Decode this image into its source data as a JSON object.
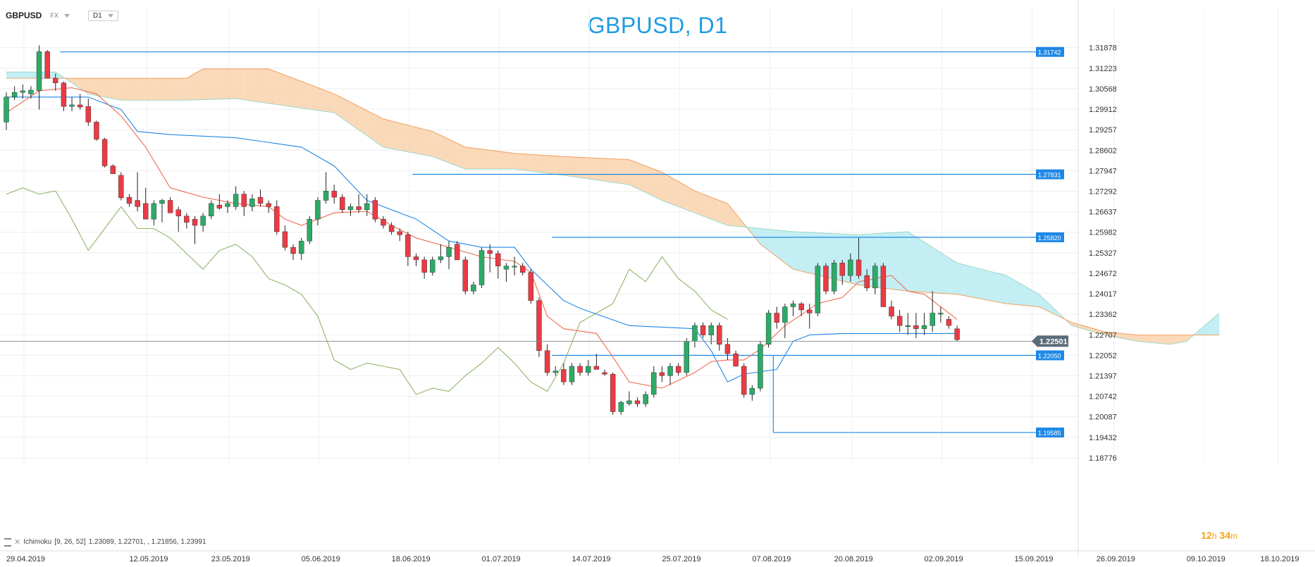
{
  "header": {
    "symbol": "GBPUSD",
    "market": "FX",
    "timeframe": "D1",
    "title": "GBPUSD, D1"
  },
  "indicator": {
    "name": "Ichimoku",
    "params": "[9, 26, 52]",
    "values": "1.23089,  1.22701,  , 1.21856,  1.23991"
  },
  "countdown": {
    "hours": "12",
    "h": "h",
    "minutes": "34",
    "m": "m"
  },
  "colors": {
    "up": "#2eaa68",
    "down": "#ea3b45",
    "tenkan": "#ef6b50",
    "kijun": "#1e88e5",
    "chikou": "#8fb56a",
    "kumo_bull": "#b9ecf2",
    "kumo_bear": "#f9d2ad",
    "level": "#1e88e5",
    "price_label": "#5a6b78"
  },
  "chart_data": {
    "type": "candlestick",
    "title": "GBPUSD, D1",
    "ylim": [
      1.18776,
      1.325
    ],
    "y_ticks": [
      "1.31878",
      "1.31223",
      "1.30568",
      "1.29912",
      "1.29257",
      "1.28602",
      "1.27947",
      "1.27292",
      "1.26637",
      "1.25982",
      "1.25327",
      "1.24672",
      "1.24017",
      "1.23362",
      "1.22707",
      "1.22052",
      "1.21397",
      "1.20742",
      "1.20087",
      "1.19432",
      "1.18776"
    ],
    "x_ticks": [
      "29.04.2019",
      "12.05.2019",
      "23.05.2019",
      "05.06.2019",
      "18.06.2019",
      "01.07.2019",
      "14.07.2019",
      "25.07.2019",
      "07.08.2019",
      "20.08.2019",
      "02.09.2019",
      "15.09.2019",
      "26.09.2019",
      "09.10.2019",
      "18.10.2019"
    ],
    "levels": [
      {
        "value": 1.31742,
        "label": "1.31742"
      },
      {
        "value": 1.27831,
        "label": "1.27831"
      },
      {
        "value": 1.2582,
        "label": "1.25820"
      },
      {
        "value": 1.2205,
        "label": "1.22050"
      },
      {
        "value": 1.19585,
        "label": "1.19585"
      }
    ],
    "current_price": {
      "value": 1.22501,
      "label": "1.22501"
    },
    "candles": [
      [
        1.295,
        1.3045,
        1.2925,
        1.303
      ],
      [
        1.303,
        1.3065,
        1.302,
        1.3045
      ],
      [
        1.3045,
        1.307,
        1.3025,
        1.305
      ],
      [
        1.304,
        1.3065,
        1.3025,
        1.3052
      ],
      [
        1.305,
        1.3195,
        1.299,
        1.3175
      ],
      [
        1.3175,
        1.318,
        1.31,
        1.309
      ],
      [
        1.309,
        1.3105,
        1.305,
        1.3075
      ],
      [
        1.3075,
        1.308,
        1.2985,
        1.3
      ],
      [
        1.3,
        1.303,
        1.2985,
        1.3005
      ],
      [
        1.3005,
        1.304,
        1.299,
        1.2998
      ],
      [
        1.3,
        1.3025,
        1.2938,
        1.295
      ],
      [
        1.295,
        1.2955,
        1.289,
        1.2895
      ],
      [
        1.2895,
        1.29,
        1.2805,
        1.281
      ],
      [
        1.281,
        1.2815,
        1.279,
        1.2785
      ],
      [
        1.278,
        1.279,
        1.27,
        1.2708
      ],
      [
        1.271,
        1.272,
        1.268,
        1.269
      ],
      [
        1.27,
        1.279,
        1.2665,
        1.268
      ],
      [
        1.269,
        1.274,
        1.264,
        1.264
      ],
      [
        1.264,
        1.27,
        1.262,
        1.269
      ],
      [
        1.269,
        1.2705,
        1.263,
        1.27
      ],
      [
        1.27,
        1.271,
        1.266,
        1.266
      ],
      [
        1.267,
        1.268,
        1.26,
        1.265
      ],
      [
        1.265,
        1.266,
        1.261,
        1.263
      ],
      [
        1.264,
        1.265,
        1.256,
        1.262
      ],
      [
        1.262,
        1.266,
        1.26,
        1.265
      ],
      [
        1.265,
        1.27,
        1.264,
        1.269
      ],
      [
        1.2685,
        1.272,
        1.267,
        1.2675
      ],
      [
        1.268,
        1.27,
        1.266,
        1.269
      ],
      [
        1.268,
        1.2745,
        1.267,
        1.272
      ],
      [
        1.272,
        1.273,
        1.265,
        1.268
      ],
      [
        1.268,
        1.272,
        1.2665,
        1.2705
      ],
      [
        1.271,
        1.2735,
        1.268,
        1.269
      ],
      [
        1.269,
        1.27,
        1.266,
        1.268
      ],
      [
        1.268,
        1.27,
        1.259,
        1.26
      ],
      [
        1.26,
        1.262,
        1.254,
        1.255
      ],
      [
        1.255,
        1.256,
        1.251,
        1.253
      ],
      [
        1.253,
        1.258,
        1.251,
        1.257
      ],
      [
        1.257,
        1.265,
        1.256,
        1.264
      ],
      [
        1.264,
        1.271,
        1.262,
        1.27
      ],
      [
        1.27,
        1.279,
        1.269,
        1.273
      ],
      [
        1.273,
        1.275,
        1.269,
        1.271
      ],
      [
        1.271,
        1.272,
        1.266,
        1.267
      ],
      [
        1.267,
        1.269,
        1.265,
        1.268
      ],
      [
        1.268,
        1.272,
        1.266,
        1.267
      ],
      [
        1.267,
        1.272,
        1.265,
        1.269
      ],
      [
        1.27,
        1.271,
        1.263,
        1.264
      ],
      [
        1.264,
        1.265,
        1.261,
        1.262
      ],
      [
        1.262,
        1.263,
        1.259,
        1.26
      ],
      [
        1.26,
        1.261,
        1.257,
        1.259
      ],
      [
        1.259,
        1.26,
        1.249,
        1.252
      ],
      [
        1.252,
        1.253,
        1.249,
        1.251
      ],
      [
        1.251,
        1.252,
        1.245,
        1.247
      ],
      [
        1.247,
        1.252,
        1.246,
        1.251
      ],
      [
        1.251,
        1.256,
        1.25,
        1.252
      ],
      [
        1.252,
        1.257,
        1.248,
        1.255
      ],
      [
        1.256,
        1.257,
        1.251,
        1.251
      ],
      [
        1.251,
        1.252,
        1.24,
        1.241
      ],
      [
        1.241,
        1.244,
        1.24,
        1.243
      ],
      [
        1.243,
        1.255,
        1.242,
        1.254
      ],
      [
        1.254,
        1.256,
        1.247,
        1.253
      ],
      [
        1.253,
        1.254,
        1.245,
        1.249
      ],
      [
        1.248,
        1.25,
        1.244,
        1.249
      ],
      [
        1.249,
        1.252,
        1.246,
        1.249
      ],
      [
        1.249,
        1.25,
        1.246,
        1.247
      ],
      [
        1.247,
        1.248,
        1.237,
        1.238
      ],
      [
        1.238,
        1.239,
        1.22,
        1.222
      ],
      [
        1.222,
        1.224,
        1.214,
        1.215
      ],
      [
        1.215,
        1.217,
        1.214,
        1.2155
      ],
      [
        1.216,
        1.218,
        1.211,
        1.212
      ],
      [
        1.212,
        1.218,
        1.211,
        1.217
      ],
      [
        1.217,
        1.218,
        1.214,
        1.215
      ],
      [
        1.215,
        1.219,
        1.214,
        1.217
      ],
      [
        1.217,
        1.221,
        1.216,
        1.216
      ],
      [
        1.215,
        1.216,
        1.214,
        1.2145
      ],
      [
        1.2145,
        1.215,
        1.2015,
        1.2025
      ],
      [
        1.2025,
        1.206,
        1.2015,
        1.2055
      ],
      [
        1.205,
        1.209,
        1.2045,
        1.206
      ],
      [
        1.206,
        1.207,
        1.204,
        1.205
      ],
      [
        1.205,
        1.209,
        1.204,
        1.208
      ],
      [
        1.208,
        1.217,
        1.207,
        1.215
      ],
      [
        1.215,
        1.217,
        1.212,
        1.214
      ],
      [
        1.214,
        1.218,
        1.211,
        1.217
      ],
      [
        1.217,
        1.218,
        1.214,
        1.215
      ],
      [
        1.215,
        1.226,
        1.214,
        1.225
      ],
      [
        1.225,
        1.231,
        1.223,
        1.23
      ],
      [
        1.23,
        1.231,
        1.226,
        1.227
      ],
      [
        1.227,
        1.231,
        1.224,
        1.23
      ],
      [
        1.23,
        1.231,
        1.222,
        1.224
      ],
      [
        1.224,
        1.226,
        1.219,
        1.221
      ],
      [
        1.221,
        1.222,
        1.217,
        1.217
      ],
      [
        1.217,
        1.218,
        1.207,
        1.208
      ],
      [
        1.208,
        1.211,
        1.206,
        1.21
      ],
      [
        1.21,
        1.225,
        1.209,
        1.224
      ],
      [
        1.224,
        1.235,
        1.223,
        1.234
      ],
      [
        1.234,
        1.236,
        1.229,
        1.231
      ],
      [
        1.231,
        1.237,
        1.226,
        1.236
      ],
      [
        1.236,
        1.238,
        1.233,
        1.237
      ],
      [
        1.237,
        1.2375,
        1.233,
        1.235
      ],
      [
        1.235,
        1.237,
        1.229,
        1.234
      ],
      [
        1.234,
        1.25,
        1.233,
        1.249
      ],
      [
        1.249,
        1.25,
        1.24,
        1.241
      ],
      [
        1.241,
        1.251,
        1.24,
        1.25
      ],
      [
        1.25,
        1.251,
        1.243,
        1.246
      ],
      [
        1.246,
        1.253,
        1.244,
        1.251
      ],
      [
        1.251,
        1.258,
        1.245,
        1.246
      ],
      [
        1.246,
        1.248,
        1.241,
        1.242
      ],
      [
        1.242,
        1.25,
        1.24,
        1.249
      ],
      [
        1.249,
        1.25,
        1.236,
        1.236
      ],
      [
        1.236,
        1.238,
        1.232,
        1.233
      ],
      [
        1.233,
        1.235,
        1.228,
        1.23
      ],
      [
        1.23,
        1.234,
        1.227,
        1.23
      ],
      [
        1.23,
        1.234,
        1.226,
        1.229
      ],
      [
        1.229,
        1.234,
        1.227,
        1.23
      ],
      [
        1.23,
        1.241,
        1.228,
        1.234
      ],
      [
        1.234,
        1.236,
        1.231,
        1.234
      ],
      [
        1.232,
        1.233,
        1.229,
        1.23
      ],
      [
        1.229,
        1.23,
        1.225,
        1.2255
      ]
    ],
    "tenkan": [
      [
        0,
        1.298
      ],
      [
        4,
        1.305
      ],
      [
        8,
        1.306
      ],
      [
        11,
        1.304
      ],
      [
        14,
        1.297
      ],
      [
        17,
        1.287
      ],
      [
        20,
        1.274
      ],
      [
        24,
        1.271
      ],
      [
        28,
        1.269
      ],
      [
        32,
        1.268
      ],
      [
        34,
        1.264
      ],
      [
        36,
        1.262
      ],
      [
        40,
        1.266
      ],
      [
        44,
        1.2665
      ],
      [
        47,
        1.262
      ],
      [
        50,
        1.258
      ],
      [
        54,
        1.255
      ],
      [
        58,
        1.252
      ],
      [
        62,
        1.2505
      ],
      [
        64,
        1.247
      ],
      [
        66,
        1.233
      ],
      [
        68,
        1.229
      ],
      [
        72,
        1.2275
      ],
      [
        74,
        1.22
      ],
      [
        76,
        1.212
      ],
      [
        80,
        1.21
      ],
      [
        84,
        1.215
      ],
      [
        86,
        1.2185
      ],
      [
        88,
        1.219
      ],
      [
        90,
        1.219
      ],
      [
        92,
        1.2225
      ],
      [
        95,
        1.23
      ],
      [
        99,
        1.237
      ],
      [
        102,
        1.239
      ],
      [
        104,
        1.244
      ],
      [
        106,
        1.245
      ],
      [
        108,
        1.246
      ],
      [
        110,
        1.241
      ],
      [
        112,
        1.24
      ],
      [
        114,
        1.236
      ],
      [
        116,
        1.232
      ]
    ],
    "kijun": [
      [
        0,
        1.303
      ],
      [
        10,
        1.303
      ],
      [
        14,
        1.299
      ],
      [
        16,
        1.292
      ],
      [
        20,
        1.291
      ],
      [
        28,
        1.29
      ],
      [
        36,
        1.287
      ],
      [
        40,
        1.281
      ],
      [
        44,
        1.27
      ],
      [
        50,
        1.264
      ],
      [
        54,
        1.257
      ],
      [
        58,
        1.255
      ],
      [
        62,
        1.255
      ],
      [
        64,
        1.248
      ],
      [
        66,
        1.243
      ],
      [
        68,
        1.238
      ],
      [
        70,
        1.2355
      ],
      [
        76,
        1.23
      ],
      [
        84,
        1.229
      ],
      [
        86,
        1.222
      ],
      [
        88,
        1.212
      ],
      [
        90,
        1.2145
      ],
      [
        94,
        1.216
      ],
      [
        96,
        1.225
      ],
      [
        98,
        1.227
      ],
      [
        102,
        1.2275
      ],
      [
        116,
        1.2275
      ]
    ],
    "chikou": [
      [
        0,
        1.272
      ],
      [
        2,
        1.274
      ],
      [
        4,
        1.272
      ],
      [
        6,
        1.273
      ],
      [
        8,
        1.264
      ],
      [
        10,
        1.254
      ],
      [
        12,
        1.261
      ],
      [
        14,
        1.268
      ],
      [
        16,
        1.261
      ],
      [
        18,
        1.261
      ],
      [
        20,
        1.258
      ],
      [
        22,
        1.253
      ],
      [
        24,
        1.248
      ],
      [
        26,
        1.254
      ],
      [
        28,
        1.256
      ],
      [
        30,
        1.252
      ],
      [
        32,
        1.245
      ],
      [
        34,
        1.243
      ],
      [
        36,
        1.24
      ],
      [
        38,
        1.233
      ],
      [
        40,
        1.219
      ],
      [
        42,
        1.216
      ],
      [
        44,
        1.218
      ],
      [
        46,
        1.217
      ],
      [
        48,
        1.216
      ],
      [
        50,
        1.208
      ],
      [
        52,
        1.21
      ],
      [
        54,
        1.209
      ],
      [
        56,
        1.214
      ],
      [
        58,
        1.218
      ],
      [
        60,
        1.223
      ],
      [
        62,
        1.218
      ],
      [
        64,
        1.212
      ],
      [
        66,
        1.209
      ],
      [
        68,
        1.218
      ],
      [
        70,
        1.231
      ],
      [
        72,
        1.234
      ],
      [
        74,
        1.237
      ],
      [
        76,
        1.248
      ],
      [
        78,
        1.244
      ],
      [
        80,
        1.252
      ],
      [
        82,
        1.245
      ],
      [
        84,
        1.241
      ],
      [
        86,
        1.235
      ],
      [
        88,
        1.232
      ]
    ],
    "senkou_a": [
      [
        0,
        1.311
      ],
      [
        6,
        1.311
      ],
      [
        10,
        1.304
      ],
      [
        14,
        1.302
      ],
      [
        22,
        1.302
      ],
      [
        28,
        1.3025
      ],
      [
        32,
        1.301
      ],
      [
        40,
        1.298
      ],
      [
        46,
        1.287
      ],
      [
        52,
        1.284
      ],
      [
        56,
        1.28
      ],
      [
        62,
        1.28
      ],
      [
        68,
        1.278
      ],
      [
        76,
        1.275
      ],
      [
        80,
        1.27
      ],
      [
        84,
        1.266
      ],
      [
        88,
        1.262
      ],
      [
        96,
        1.26
      ],
      [
        104,
        1.259
      ],
      [
        110,
        1.26
      ],
      [
        116,
        1.25
      ],
      [
        122,
        1.246
      ],
      [
        126,
        1.24
      ],
      [
        130,
        1.23
      ],
      [
        134,
        1.227
      ],
      [
        138,
        1.225
      ],
      [
        142,
        1.224
      ],
      [
        144,
        1.225
      ],
      [
        148,
        1.234
      ]
    ],
    "senkou_b": [
      [
        0,
        1.309
      ],
      [
        10,
        1.309
      ],
      [
        14,
        1.309
      ],
      [
        22,
        1.309
      ],
      [
        24,
        1.312
      ],
      [
        32,
        1.312
      ],
      [
        36,
        1.308
      ],
      [
        40,
        1.304
      ],
      [
        46,
        1.296
      ],
      [
        52,
        1.292
      ],
      [
        56,
        1.287
      ],
      [
        62,
        1.285
      ],
      [
        68,
        1.284
      ],
      [
        76,
        1.283
      ],
      [
        80,
        1.279
      ],
      [
        84,
        1.273
      ],
      [
        88,
        1.269
      ],
      [
        92,
        1.256
      ],
      [
        96,
        1.248
      ],
      [
        104,
        1.243
      ],
      [
        110,
        1.241
      ],
      [
        116,
        1.24
      ],
      [
        122,
        1.237
      ],
      [
        126,
        1.236
      ],
      [
        130,
        1.231
      ],
      [
        134,
        1.228
      ],
      [
        138,
        1.227
      ],
      [
        142,
        1.227
      ],
      [
        148,
        1.227
      ]
    ]
  }
}
